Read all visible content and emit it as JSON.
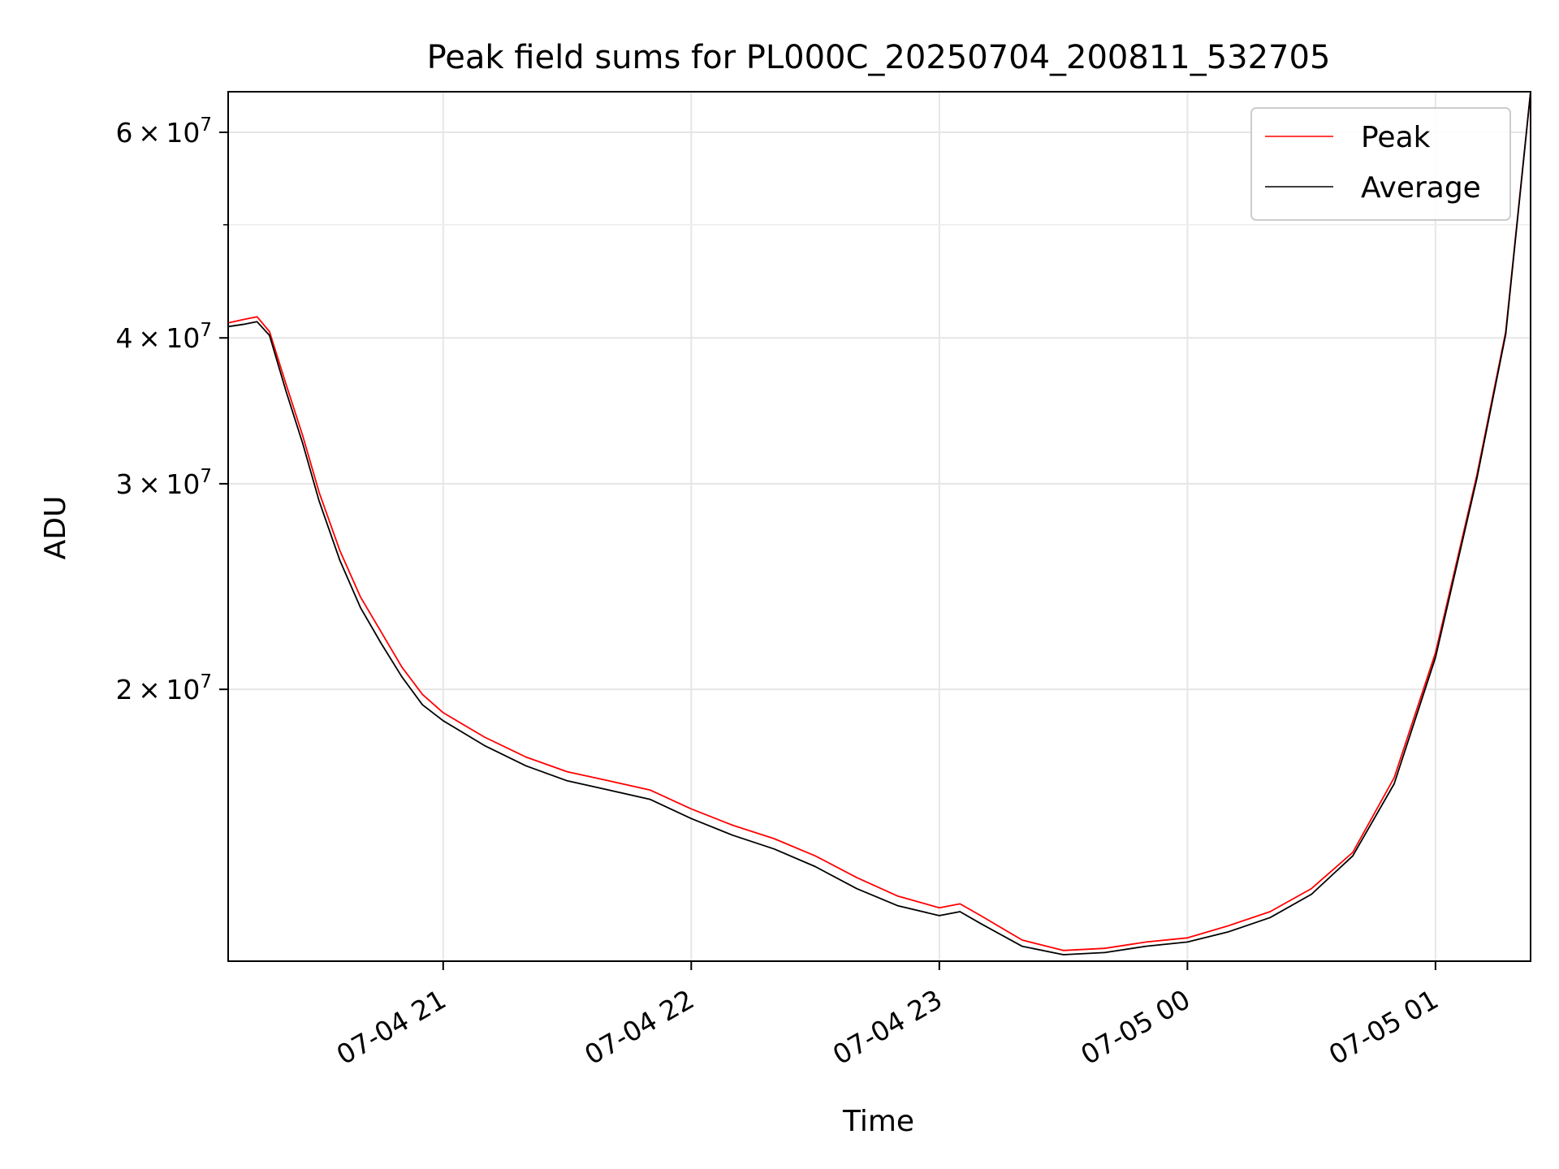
{
  "chart_data": {
    "type": "line",
    "title": "Peak field sums for PL000C_20250704_200811_532705",
    "xlabel": "Time",
    "ylabel": "ADU",
    "yscale": "log",
    "xlim": [
      "2025-07-04 20:08",
      "2025-07-05 01:23"
    ],
    "ylim": [
      11700000,
      65000000
    ],
    "grid": true,
    "legend_position": "top-right",
    "x_ticks": [
      {
        "t": "2025-07-04 21:00",
        "label": "07-04 21"
      },
      {
        "t": "2025-07-04 22:00",
        "label": "07-04 22"
      },
      {
        "t": "2025-07-04 23:00",
        "label": "07-04 23"
      },
      {
        "t": "2025-07-05 00:00",
        "label": "07-05 00"
      },
      {
        "t": "2025-07-05 01:00",
        "label": "07-05 01"
      }
    ],
    "y_ticks_major": [
      {
        "value": 20000000,
        "label_mantissa": "2",
        "label_exp": "7"
      },
      {
        "value": 30000000,
        "label_mantissa": "3",
        "label_exp": "7"
      },
      {
        "value": 40000000,
        "label_mantissa": "4",
        "label_exp": "7"
      },
      {
        "value": 60000000,
        "label_mantissa": "6",
        "label_exp": "7"
      }
    ],
    "y_ticks_minor": [
      50000000
    ],
    "series": [
      {
        "name": "Peak",
        "color": "#ff0000",
        "points": [
          [
            "2025-07-04 20:08",
            41200000
          ],
          [
            "2025-07-04 20:12",
            41500000
          ],
          [
            "2025-07-04 20:15",
            41700000
          ],
          [
            "2025-07-04 20:18",
            40500000
          ],
          [
            "2025-07-04 20:22",
            36500000
          ],
          [
            "2025-07-04 20:26",
            33000000
          ],
          [
            "2025-07-04 20:30",
            29500000
          ],
          [
            "2025-07-04 20:35",
            26300000
          ],
          [
            "2025-07-04 20:40",
            24000000
          ],
          [
            "2025-07-04 20:45",
            22400000
          ],
          [
            "2025-07-04 20:50",
            20900000
          ],
          [
            "2025-07-04 20:55",
            19800000
          ],
          [
            "2025-07-04 21:00",
            19100000
          ],
          [
            "2025-07-04 21:10",
            18200000
          ],
          [
            "2025-07-04 21:20",
            17500000
          ],
          [
            "2025-07-04 21:30",
            17000000
          ],
          [
            "2025-07-04 21:40",
            16700000
          ],
          [
            "2025-07-04 21:50",
            16400000
          ],
          [
            "2025-07-04 22:00",
            15800000
          ],
          [
            "2025-07-04 22:10",
            15300000
          ],
          [
            "2025-07-04 22:20",
            14900000
          ],
          [
            "2025-07-04 22:30",
            14400000
          ],
          [
            "2025-07-04 22:40",
            13800000
          ],
          [
            "2025-07-04 22:50",
            13300000
          ],
          [
            "2025-07-04 23:00",
            13000000
          ],
          [
            "2025-07-04 23:05",
            13100000
          ],
          [
            "2025-07-04 23:10",
            12800000
          ],
          [
            "2025-07-04 23:20",
            12200000
          ],
          [
            "2025-07-04 23:30",
            11950000
          ],
          [
            "2025-07-04 23:40",
            12000000
          ],
          [
            "2025-07-04 23:50",
            12150000
          ],
          [
            "2025-07-05 00:00",
            12250000
          ],
          [
            "2025-07-05 00:10",
            12550000
          ],
          [
            "2025-07-05 00:20",
            12900000
          ],
          [
            "2025-07-05 00:30",
            13500000
          ],
          [
            "2025-07-05 00:40",
            14500000
          ],
          [
            "2025-07-05 00:50",
            16800000
          ],
          [
            "2025-07-05 01:00",
            21500000
          ],
          [
            "2025-07-05 01:10",
            30500000
          ],
          [
            "2025-07-05 01:17",
            40500000
          ],
          [
            "2025-07-05 01:23",
            65000000
          ]
        ]
      },
      {
        "name": "Average",
        "color": "#000000",
        "points": [
          [
            "2025-07-04 20:08",
            40900000
          ],
          [
            "2025-07-04 20:12",
            41100000
          ],
          [
            "2025-07-04 20:15",
            41300000
          ],
          [
            "2025-07-04 20:18",
            40200000
          ],
          [
            "2025-07-04 20:22",
            36000000
          ],
          [
            "2025-07-04 20:26",
            32500000
          ],
          [
            "2025-07-04 20:30",
            29000000
          ],
          [
            "2025-07-04 20:35",
            25800000
          ],
          [
            "2025-07-04 20:40",
            23500000
          ],
          [
            "2025-07-04 20:45",
            21900000
          ],
          [
            "2025-07-04 20:50",
            20500000
          ],
          [
            "2025-07-04 20:55",
            19400000
          ],
          [
            "2025-07-04 21:00",
            18800000
          ],
          [
            "2025-07-04 21:10",
            17900000
          ],
          [
            "2025-07-04 21:20",
            17200000
          ],
          [
            "2025-07-04 21:30",
            16700000
          ],
          [
            "2025-07-04 21:40",
            16400000
          ],
          [
            "2025-07-04 21:50",
            16100000
          ],
          [
            "2025-07-04 22:00",
            15500000
          ],
          [
            "2025-07-04 22:10",
            15000000
          ],
          [
            "2025-07-04 22:20",
            14600000
          ],
          [
            "2025-07-04 22:30",
            14100000
          ],
          [
            "2025-07-04 22:40",
            13500000
          ],
          [
            "2025-07-04 22:50",
            13050000
          ],
          [
            "2025-07-04 23:00",
            12800000
          ],
          [
            "2025-07-04 23:05",
            12900000
          ],
          [
            "2025-07-04 23:10",
            12600000
          ],
          [
            "2025-07-04 23:20",
            12050000
          ],
          [
            "2025-07-04 23:30",
            11850000
          ],
          [
            "2025-07-04 23:40",
            11900000
          ],
          [
            "2025-07-04 23:50",
            12050000
          ],
          [
            "2025-07-05 00:00",
            12150000
          ],
          [
            "2025-07-05 00:10",
            12400000
          ],
          [
            "2025-07-05 00:20",
            12750000
          ],
          [
            "2025-07-05 00:30",
            13350000
          ],
          [
            "2025-07-05 00:40",
            14400000
          ],
          [
            "2025-07-05 00:50",
            16600000
          ],
          [
            "2025-07-05 01:00",
            21300000
          ],
          [
            "2025-07-05 01:10",
            30300000
          ],
          [
            "2025-07-05 01:17",
            40300000
          ],
          [
            "2025-07-05 01:23",
            65000000
          ]
        ]
      }
    ]
  }
}
